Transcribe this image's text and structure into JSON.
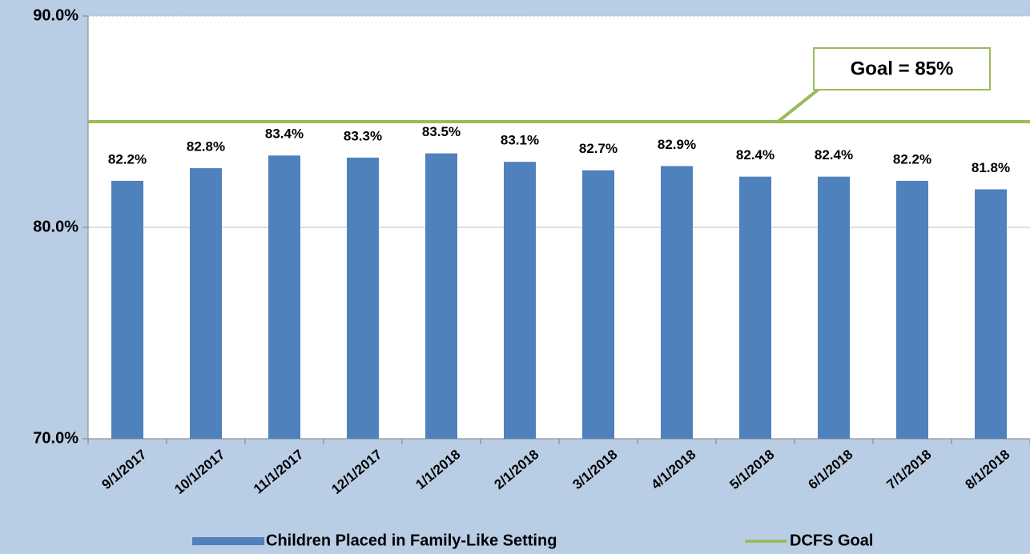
{
  "chart_data": {
    "type": "bar",
    "categories": [
      "9/1/2017",
      "10/1/2017",
      "11/1/2017",
      "12/1/2017",
      "1/1/2018",
      "2/1/2018",
      "3/1/2018",
      "4/1/2018",
      "5/1/2018",
      "6/1/2018",
      "7/1/2018",
      "8/1/2018"
    ],
    "series": [
      {
        "name": "Children Placed in Family-Like Setting",
        "type": "bar",
        "color": "#4f81bd",
        "values": [
          82.2,
          82.8,
          83.4,
          83.3,
          83.5,
          83.1,
          82.7,
          82.9,
          82.4,
          82.4,
          82.2,
          81.8
        ],
        "value_labels": [
          "82.2%",
          "82.8%",
          "83.4%",
          "83.3%",
          "83.5%",
          "83.1%",
          "82.7%",
          "82.9%",
          "82.4%",
          "82.4%",
          "82.2%",
          "81.8%"
        ]
      },
      {
        "name": "DCFS Goal",
        "type": "line",
        "color": "#9bbb59",
        "values": [
          85,
          85,
          85,
          85,
          85,
          85,
          85,
          85,
          85,
          85,
          85,
          85
        ]
      }
    ],
    "annotation": "Goal = 85%",
    "ylim": [
      70,
      90
    ],
    "yticks": [
      {
        "value": 70,
        "label": "70.0%"
      },
      {
        "value": 80,
        "label": "80.0%"
      },
      {
        "value": 90,
        "label": "90.0%"
      }
    ],
    "grid": true,
    "legend": "bottom"
  }
}
